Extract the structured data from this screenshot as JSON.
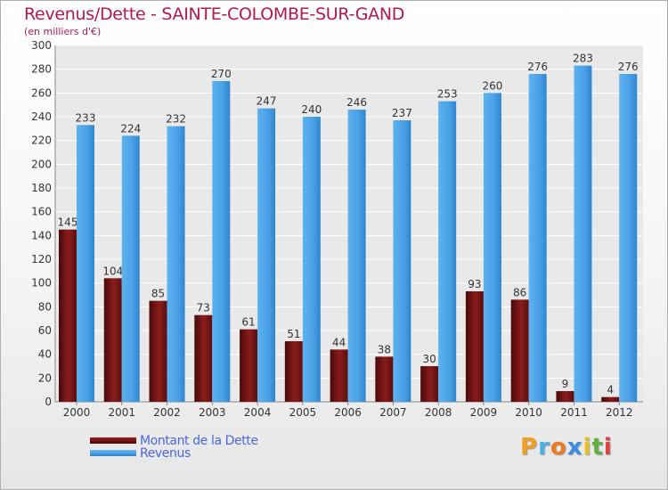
{
  "chart_data": {
    "type": "bar",
    "title": "Revenus/Dette - SAINTE-COLOMBE-SUR-GAND",
    "subtitle": "(en milliers d'€)",
    "xlabel": "",
    "ylabel": "",
    "ylim": [
      0,
      300
    ],
    "yticks": [
      0,
      20,
      40,
      60,
      80,
      100,
      120,
      140,
      160,
      180,
      200,
      220,
      240,
      260,
      280,
      300
    ],
    "grid": true,
    "categories": [
      "2000",
      "2001",
      "2002",
      "2003",
      "2004",
      "2005",
      "2006",
      "2007",
      "2008",
      "2009",
      "2010",
      "2011",
      "2012"
    ],
    "series": [
      {
        "name": "Montant de la Dette",
        "color": "#7a1414",
        "values": [
          145,
          104,
          85,
          73,
          61,
          51,
          44,
          38,
          30,
          93,
          86,
          9,
          4
        ]
      },
      {
        "name": "Revenus",
        "color": "#4aa0e6",
        "values": [
          233,
          224,
          232,
          270,
          247,
          240,
          246,
          237,
          253,
          260,
          276,
          283,
          276
        ]
      }
    ],
    "legend_position": "bottom-left"
  },
  "logo": {
    "letters": [
      "P",
      "r",
      "o",
      "x",
      "i",
      "t",
      "i"
    ],
    "colors": [
      "#f0a020",
      "#4ab0e8",
      "#f07a20",
      "#3a8fe0",
      "#e8c020",
      "#60b040",
      "#e04040"
    ]
  }
}
